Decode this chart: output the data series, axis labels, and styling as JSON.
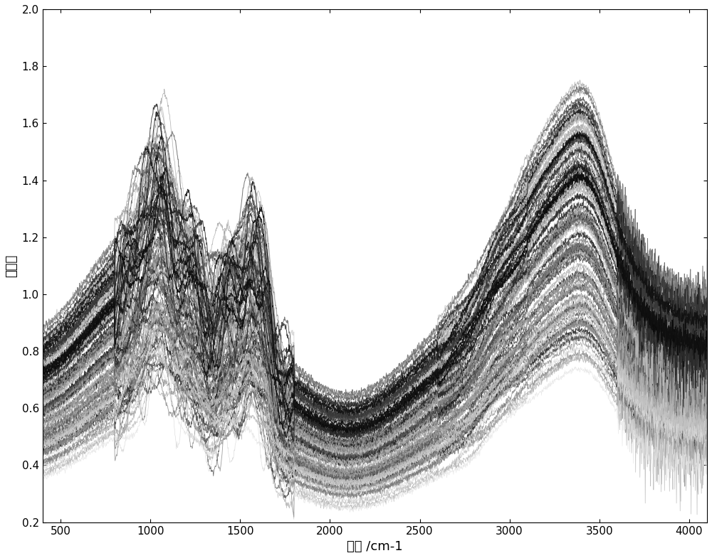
{
  "xlabel": "波数 /cm-1",
  "ylabel": "吸光度",
  "xlim": [
    399,
    4100
  ],
  "ylim": [
    0.2,
    2.0
  ],
  "xticks": [
    500,
    1000,
    1500,
    2000,
    2500,
    3000,
    3500,
    4000
  ],
  "yticks": [
    0.2,
    0.4,
    0.6,
    0.8,
    1.0,
    1.2,
    1.4,
    1.6,
    1.8,
    2.0
  ],
  "num_spectra": 120,
  "seed": 7,
  "background_color": "#ffffff",
  "line_alpha": 0.75,
  "line_width": 0.55
}
